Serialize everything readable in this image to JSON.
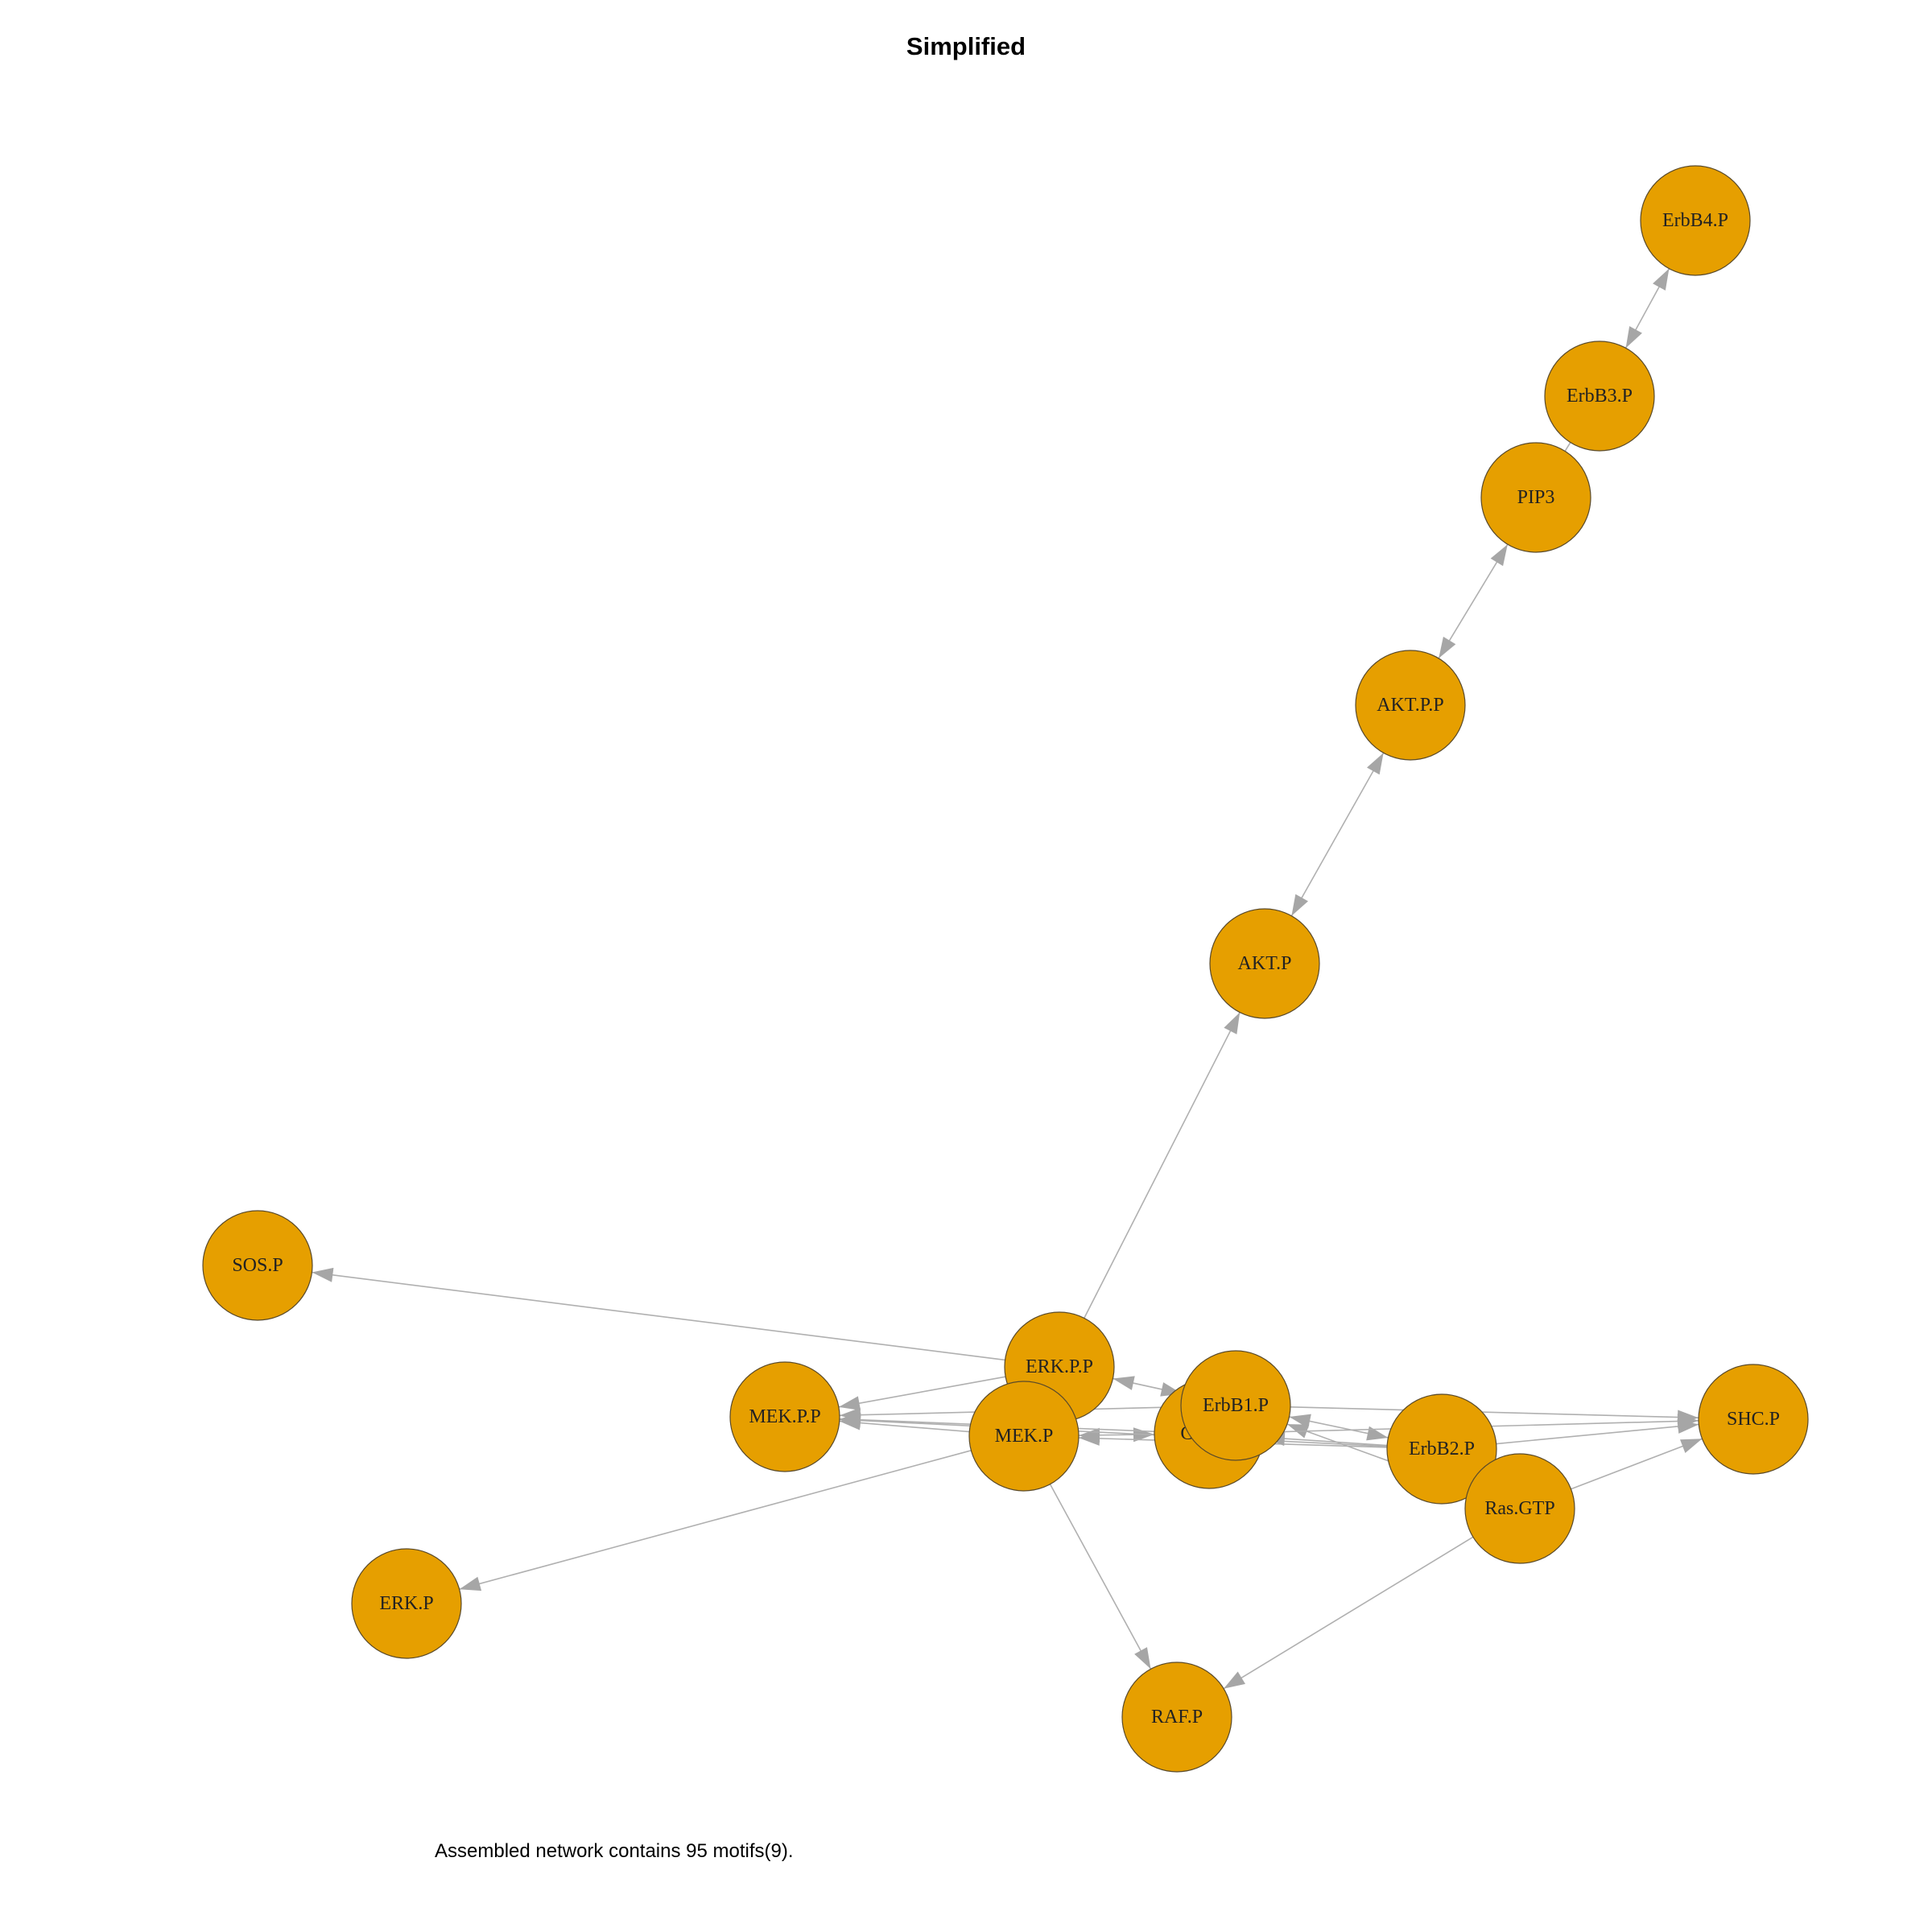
{
  "title": "Simplified",
  "caption": "Assembled network contains 95 motifs(9).",
  "colors": {
    "node_fill": "#e69f00",
    "edge": "#b0b0b0",
    "arrow": "#a6a6a6"
  },
  "nodes": [
    {
      "id": "ErbB4.P",
      "label": "ErbB4.P"
    },
    {
      "id": "ErbB3.P",
      "label": "ErbB3.P"
    },
    {
      "id": "PIP3",
      "label": "PIP3"
    },
    {
      "id": "AKT.P.P",
      "label": "AKT.P.P"
    },
    {
      "id": "AKT.P",
      "label": "AKT.P"
    },
    {
      "id": "SOS.P",
      "label": "SOS.P"
    },
    {
      "id": "MEK.P.P",
      "label": "MEK.P.P"
    },
    {
      "id": "ERK.P.P",
      "label": "ERK.P.P"
    },
    {
      "id": "MEK.P",
      "label": "MEK.P"
    },
    {
      "id": "Gab1.P",
      "label": "Gab1.P"
    },
    {
      "id": "ErbB1.P",
      "label": "ErbB1.P"
    },
    {
      "id": "ErbB2.P",
      "label": "ErbB2.P"
    },
    {
      "id": "Ras.GTP",
      "label": "Ras.GTP"
    },
    {
      "id": "SHC.P",
      "label": "SHC.P"
    },
    {
      "id": "ERK.P",
      "label": "ERK.P"
    },
    {
      "id": "RAF.P",
      "label": "RAF.P"
    }
  ],
  "edges": [
    {
      "from": "ErbB3.P",
      "to": "ErbB4.P",
      "bidirectional": true
    },
    {
      "from": "PIP3",
      "to": "ErbB3.P",
      "bidirectional": false,
      "arrow": false
    },
    {
      "from": "AKT.P.P",
      "to": "PIP3",
      "bidirectional": true
    },
    {
      "from": "AKT.P",
      "to": "AKT.P.P",
      "bidirectional": true
    },
    {
      "from": "ERK.P.P",
      "to": "AKT.P",
      "bidirectional": false
    },
    {
      "from": "ERK.P.P",
      "to": "SOS.P",
      "bidirectional": false
    },
    {
      "from": "ERK.P.P",
      "to": "MEK.P.P",
      "bidirectional": false
    },
    {
      "from": "ERK.P.P",
      "to": "ErbB1.P",
      "bidirectional": true
    },
    {
      "from": "MEK.P",
      "to": "MEK.P.P",
      "bidirectional": false
    },
    {
      "from": "MEK.P",
      "to": "ERK.P",
      "bidirectional": false
    },
    {
      "from": "MEK.P",
      "to": "RAF.P",
      "bidirectional": false
    },
    {
      "from": "MEK.P",
      "to": "Gab1.P",
      "bidirectional": true
    },
    {
      "from": "Gab1.P",
      "to": "MEK.P.P",
      "bidirectional": false
    },
    {
      "from": "ErbB1.P",
      "to": "MEK.P.P",
      "bidirectional": false
    },
    {
      "from": "ErbB1.P",
      "to": "ErbB2.P",
      "bidirectional": true
    },
    {
      "from": "ErbB1.P",
      "to": "SHC.P",
      "bidirectional": false
    },
    {
      "from": "ErbB2.P",
      "to": "MEK.P",
      "bidirectional": false
    },
    {
      "from": "ErbB2.P",
      "to": "MEK.P.P",
      "bidirectional": false
    },
    {
      "from": "ErbB2.P",
      "to": "SHC.P",
      "bidirectional": false
    },
    {
      "from": "ErbB2.P",
      "to": "Gab1.P",
      "bidirectional": false
    },
    {
      "from": "Ras.GTP",
      "to": "RAF.P",
      "bidirectional": false
    },
    {
      "from": "Ras.GTP",
      "to": "SHC.P",
      "bidirectional": false
    },
    {
      "from": "Ras.GTP",
      "to": "ErbB1.P",
      "bidirectional": false
    },
    {
      "from": "Gab1.P",
      "to": "SHC.P",
      "bidirectional": false
    }
  ]
}
